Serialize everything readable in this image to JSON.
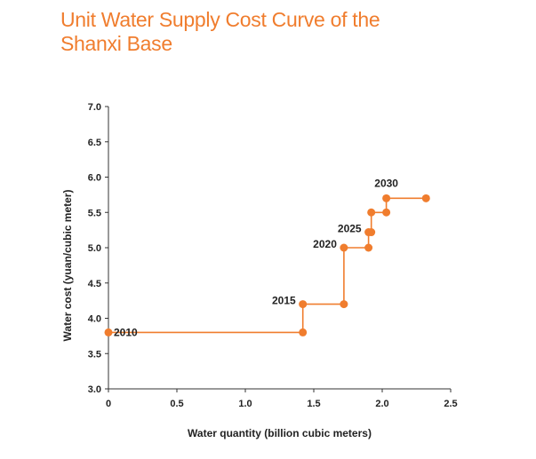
{
  "page": {
    "title_line1": "Unit Water Supply Cost Curve of the",
    "title_line2": "Shanxi Base"
  },
  "chart_data": {
    "type": "line",
    "title": "Unit Water Supply Cost Curve of the Shanxi Base",
    "xlabel": "Water quantity (billion cubic meters)",
    "ylabel": "Water cost (yuan/cubic meter)",
    "xlim": [
      0,
      2.5
    ],
    "ylim": [
      3.0,
      7.0
    ],
    "x_ticks": [
      "0",
      "0.5",
      "1.0",
      "1.5",
      "2.0",
      "2.5"
    ],
    "y_ticks": [
      "3.0",
      "3.5",
      "4.0",
      "4.5",
      "5.0",
      "5.5",
      "6.0",
      "6.5",
      "7.0"
    ],
    "grid": false,
    "line_style": "step",
    "color": "#f07d2e",
    "series": [
      {
        "points": [
          {
            "x": 0.0,
            "y": 3.8
          },
          {
            "x": 1.42,
            "y": 3.8
          },
          {
            "x": 1.42,
            "y": 4.2
          },
          {
            "x": 1.72,
            "y": 4.2
          },
          {
            "x": 1.72,
            "y": 5.0
          },
          {
            "x": 1.9,
            "y": 5.0
          },
          {
            "x": 1.9,
            "y": 5.22
          },
          {
            "x": 1.92,
            "y": 5.22
          },
          {
            "x": 1.92,
            "y": 5.5
          },
          {
            "x": 2.03,
            "y": 5.5
          },
          {
            "x": 2.03,
            "y": 5.7
          },
          {
            "x": 2.32,
            "y": 5.7
          }
        ]
      }
    ],
    "markers": [
      {
        "x": 0.0,
        "y": 3.8
      },
      {
        "x": 1.42,
        "y": 3.8
      },
      {
        "x": 1.42,
        "y": 4.2
      },
      {
        "x": 1.72,
        "y": 4.2
      },
      {
        "x": 1.72,
        "y": 5.0
      },
      {
        "x": 1.9,
        "y": 5.0
      },
      {
        "x": 1.9,
        "y": 5.22
      },
      {
        "x": 1.92,
        "y": 5.22
      },
      {
        "x": 1.92,
        "y": 5.5
      },
      {
        "x": 2.03,
        "y": 5.5
      },
      {
        "x": 2.03,
        "y": 5.7
      },
      {
        "x": 2.32,
        "y": 5.7
      }
    ],
    "annotations": [
      {
        "text": "2010",
        "x": 0.0,
        "y": 3.8,
        "anchor": "right"
      },
      {
        "text": "2015",
        "x": 1.42,
        "y": 4.2,
        "anchor": "left"
      },
      {
        "text": "2020",
        "x": 1.72,
        "y": 5.0,
        "anchor": "left"
      },
      {
        "text": "2025",
        "x": 1.9,
        "y": 5.22,
        "anchor": "left"
      },
      {
        "text": "2030",
        "x": 2.03,
        "y": 5.7,
        "anchor": "above"
      }
    ]
  }
}
